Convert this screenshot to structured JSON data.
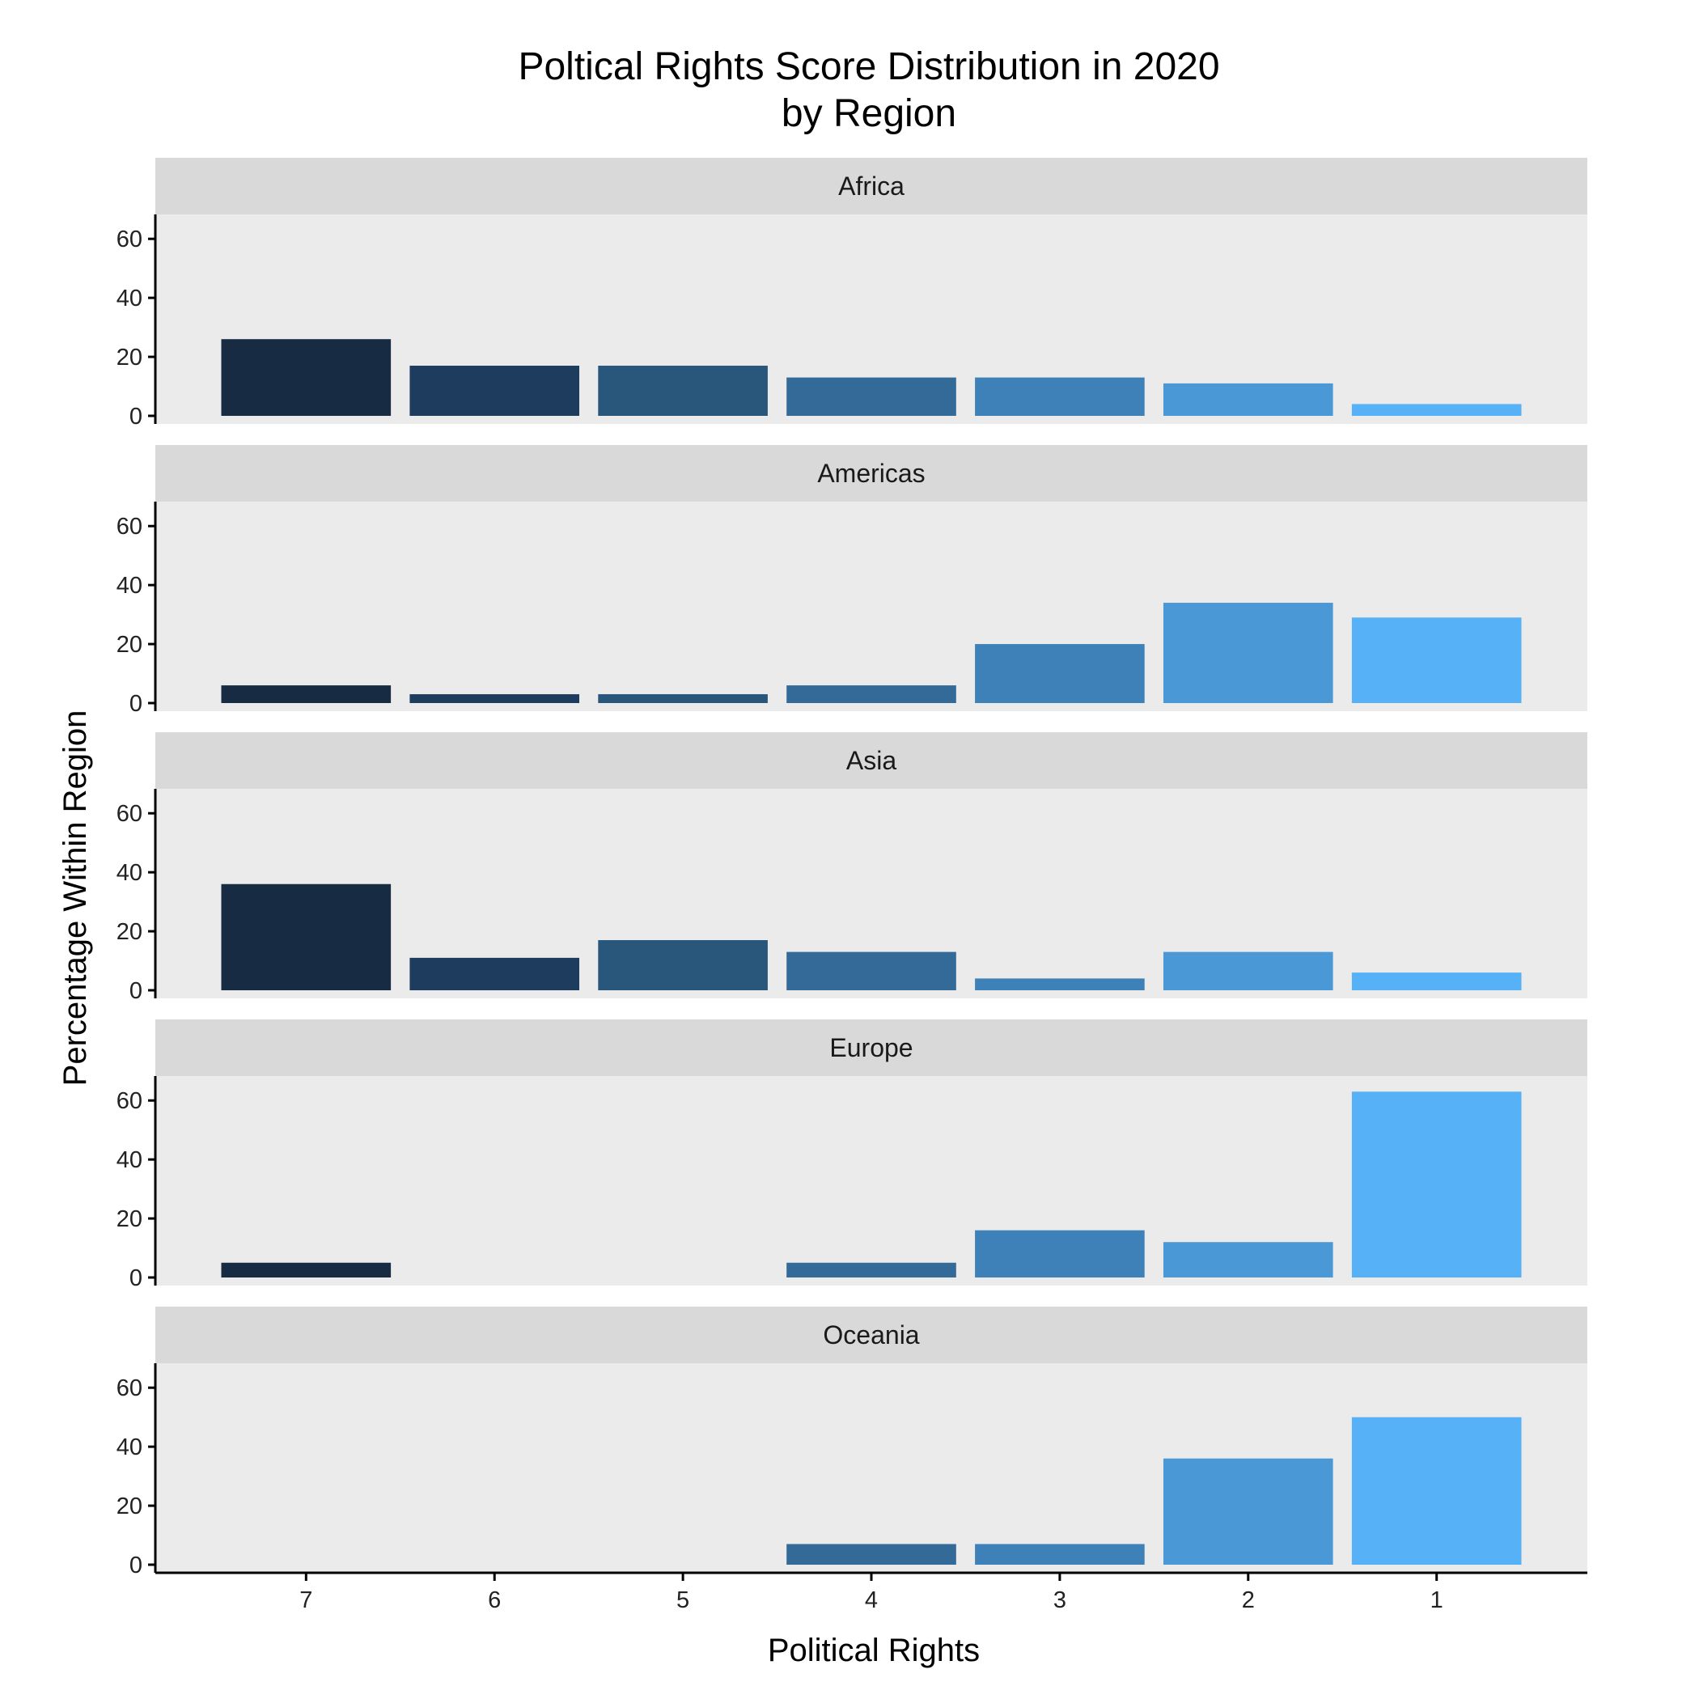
{
  "chart_data": {
    "type": "bar",
    "title": "Poltical Rights Score Distribution in 2020",
    "subtitle": "by Region",
    "xlabel": "Political Rights",
    "ylabel": "Percentage Within Region",
    "categories": [
      "7",
      "6",
      "5",
      "4",
      "3",
      "2",
      "1"
    ],
    "ylim": [
      0,
      65
    ],
    "yticks": [
      0,
      20,
      40,
      60
    ],
    "grid": false,
    "facet_by": "Region",
    "category_colors": [
      "#172b43",
      "#1e3d5e",
      "#29567b",
      "#346a98",
      "#3e81b8",
      "#4a98d6",
      "#56b1f7"
    ],
    "panels": [
      {
        "name": "Africa",
        "values": [
          26,
          17,
          17,
          13,
          13,
          11,
          4
        ]
      },
      {
        "name": "Americas",
        "values": [
          6,
          3,
          3,
          6,
          20,
          34,
          29
        ]
      },
      {
        "name": "Asia",
        "values": [
          36,
          11,
          17,
          13,
          4,
          13,
          6
        ]
      },
      {
        "name": "Europe",
        "values": [
          5,
          0,
          0,
          5,
          16,
          12,
          63
        ]
      },
      {
        "name": "Oceania",
        "values": [
          0,
          0,
          0,
          7,
          7,
          36,
          50
        ]
      }
    ]
  },
  "colors": {
    "panel_background": "#ebebeb",
    "strip_background": "#d9d9d9",
    "axis_line": "#000000"
  }
}
